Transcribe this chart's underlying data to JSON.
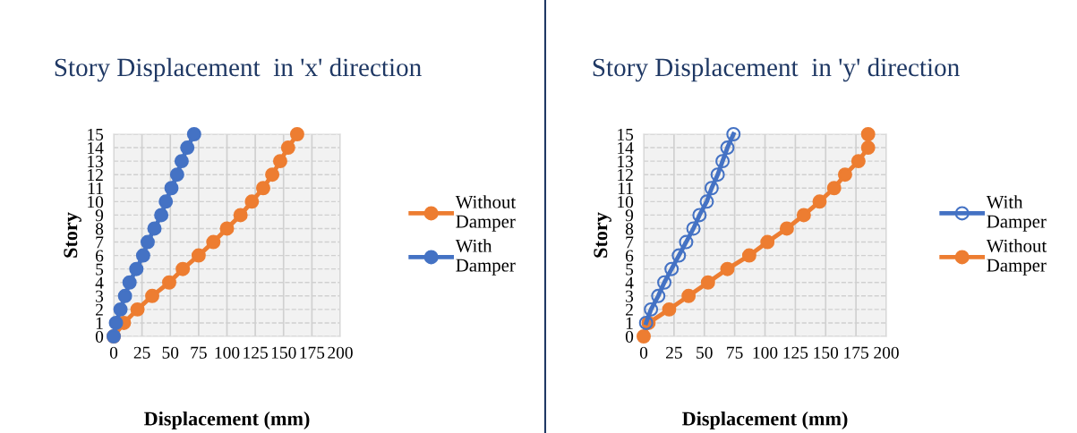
{
  "chart_data": [
    {
      "type": "line",
      "title": "Story Displacement  in 'x' direction",
      "xlabel": "Displacement (mm)",
      "ylabel": "Story",
      "xlim": [
        0,
        200
      ],
      "xticks": [
        0,
        25,
        50,
        75,
        100,
        125,
        150,
        175,
        200
      ],
      "ylim": [
        0,
        15
      ],
      "yticks": [
        0,
        1,
        2,
        3,
        4,
        5,
        6,
        7,
        8,
        9,
        10,
        11,
        12,
        13,
        14,
        15
      ],
      "grid": true,
      "legend": "right",
      "marker": "circle",
      "line_style": "solid",
      "series": [
        {
          "name": "Without Damper",
          "color": "#ed7d31",
          "x": [
            0,
            9,
            21,
            34,
            49,
            61,
            75,
            88,
            100,
            112,
            122,
            132,
            140,
            147,
            154,
            162
          ],
          "values": [
            0,
            1,
            2,
            3,
            4,
            5,
            6,
            7,
            8,
            9,
            10,
            11,
            12,
            13,
            14,
            15
          ]
        },
        {
          "name": "With Damper",
          "color": "#4472c4",
          "x": [
            0,
            2,
            6,
            10,
            14,
            20,
            26,
            30,
            36,
            42,
            46,
            51,
            56,
            60,
            65,
            71
          ],
          "values": [
            0,
            1,
            2,
            3,
            4,
            5,
            6,
            7,
            8,
            9,
            10,
            11,
            12,
            13,
            14,
            15
          ]
        }
      ]
    },
    {
      "type": "line",
      "title": "Story Displacement  in 'y' direction",
      "xlabel": "Displacement (mm)",
      "ylabel": "Story",
      "xlim": [
        0,
        200
      ],
      "xticks": [
        0,
        25,
        50,
        75,
        100,
        125,
        150,
        175,
        200
      ],
      "ylim": [
        0,
        15
      ],
      "yticks": [
        0,
        1,
        2,
        3,
        4,
        5,
        6,
        7,
        8,
        9,
        10,
        11,
        12,
        13,
        14,
        15
      ],
      "grid": true,
      "legend": "right",
      "line_style": "solid",
      "series": [
        {
          "name": "With Damper",
          "color": "#4472c4",
          "marker": "open circle",
          "x": [
            2,
            6,
            12,
            17,
            23,
            29,
            35,
            41,
            46,
            52,
            56,
            61,
            65,
            69,
            74
          ],
          "values": [
            1,
            2,
            3,
            4,
            5,
            6,
            7,
            8,
            9,
            10,
            11,
            12,
            13,
            14,
            15
          ]
        },
        {
          "name": "Without Damper",
          "color": "#ed7d31",
          "marker": "circle",
          "x": [
            0,
            4,
            21,
            37,
            53,
            69,
            87,
            102,
            118,
            132,
            145,
            157,
            166,
            177,
            185,
            185
          ],
          "values": [
            0,
            1,
            2,
            3,
            4,
            5,
            6,
            7,
            8,
            9,
            10,
            11,
            12,
            13,
            14,
            15
          ]
        }
      ]
    }
  ]
}
